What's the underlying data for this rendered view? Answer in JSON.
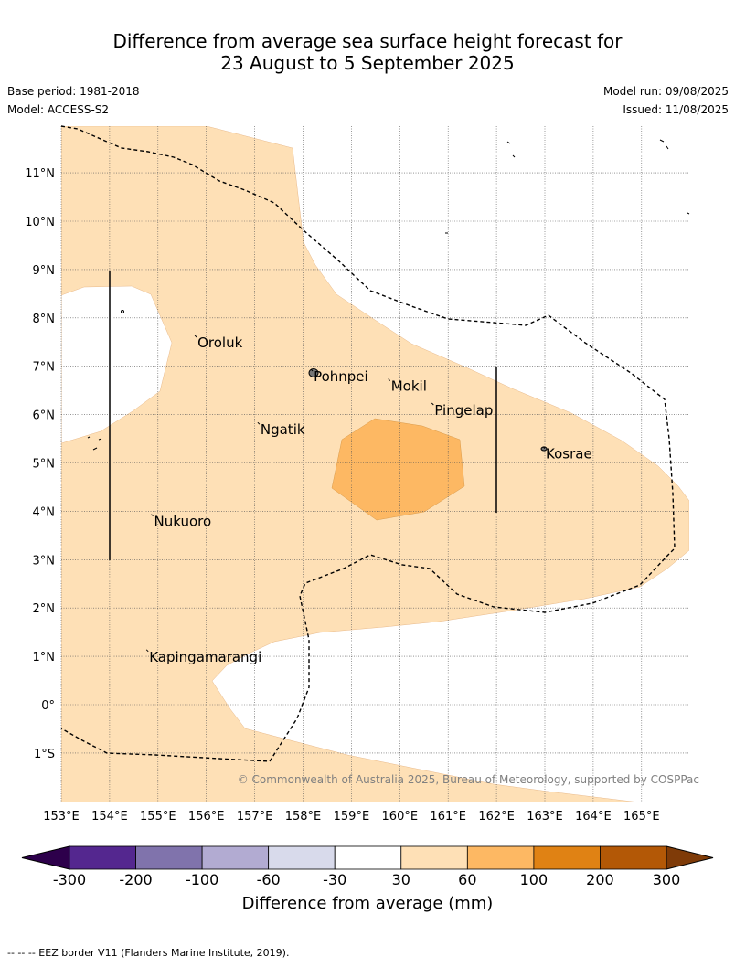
{
  "title_line1": "Difference from average sea surface height forecast for",
  "title_line2": "23 August to 5 September 2025",
  "base_period": "Base period: 1981-2018",
  "model": "Model: ACCESS-S2",
  "model_run": "Model run: 09/08/2025",
  "issued": "Issued: 11/08/2025",
  "credit": "© Commonwealth of Australia 2025, Bureau of Meteorology, supported by COSPPac",
  "lat_labels": [
    "11°N",
    "10°N",
    "9°N",
    "8°N",
    "7°N",
    "6°N",
    "5°N",
    "4°N",
    "3°N",
    "2°N",
    "1°N",
    "0°",
    "1°S"
  ],
  "lon_labels": [
    "153°E",
    "154°E",
    "155°E",
    "156°E",
    "157°E",
    "158°E",
    "159°E",
    "160°E",
    "161°E",
    "162°E",
    "163°E",
    "164°E",
    "165°E"
  ],
  "places": [
    {
      "name": "Oroluk",
      "lon": 155.8,
      "lat": 7.6
    },
    {
      "name": "Pohnpei",
      "lon": 158.2,
      "lat": 6.9
    },
    {
      "name": "Mokil",
      "lon": 159.8,
      "lat": 6.7
    },
    {
      "name": "Pingelap",
      "lon": 160.7,
      "lat": 6.2
    },
    {
      "name": "Ngatik",
      "lon": 157.1,
      "lat": 5.8
    },
    {
      "name": "Kosrae",
      "lon": 163.0,
      "lat": 5.3
    },
    {
      "name": "Nukuoro",
      "lon": 154.9,
      "lat": 3.9
    },
    {
      "name": "Kapingamarangi",
      "lon": 154.8,
      "lat": 1.1
    }
  ],
  "colorbar": {
    "title": "Difference from average (mm)",
    "ticks": [
      "-300",
      "-200",
      "-100",
      "-60",
      "-30",
      "30",
      "60",
      "100",
      "200",
      "300"
    ],
    "colors": [
      "#54278f",
      "#8073ac",
      "#b2abd2",
      "#d8daeb",
      "#ffffff",
      "#fee0b6",
      "#fdb863",
      "#e08214",
      "#b35806"
    ],
    "under_color": "#2d004b",
    "over_color": "#7f3b08"
  },
  "footnote": "--  --  -- EEZ border V11 (Flanders Marine Institute, 2019)."
}
